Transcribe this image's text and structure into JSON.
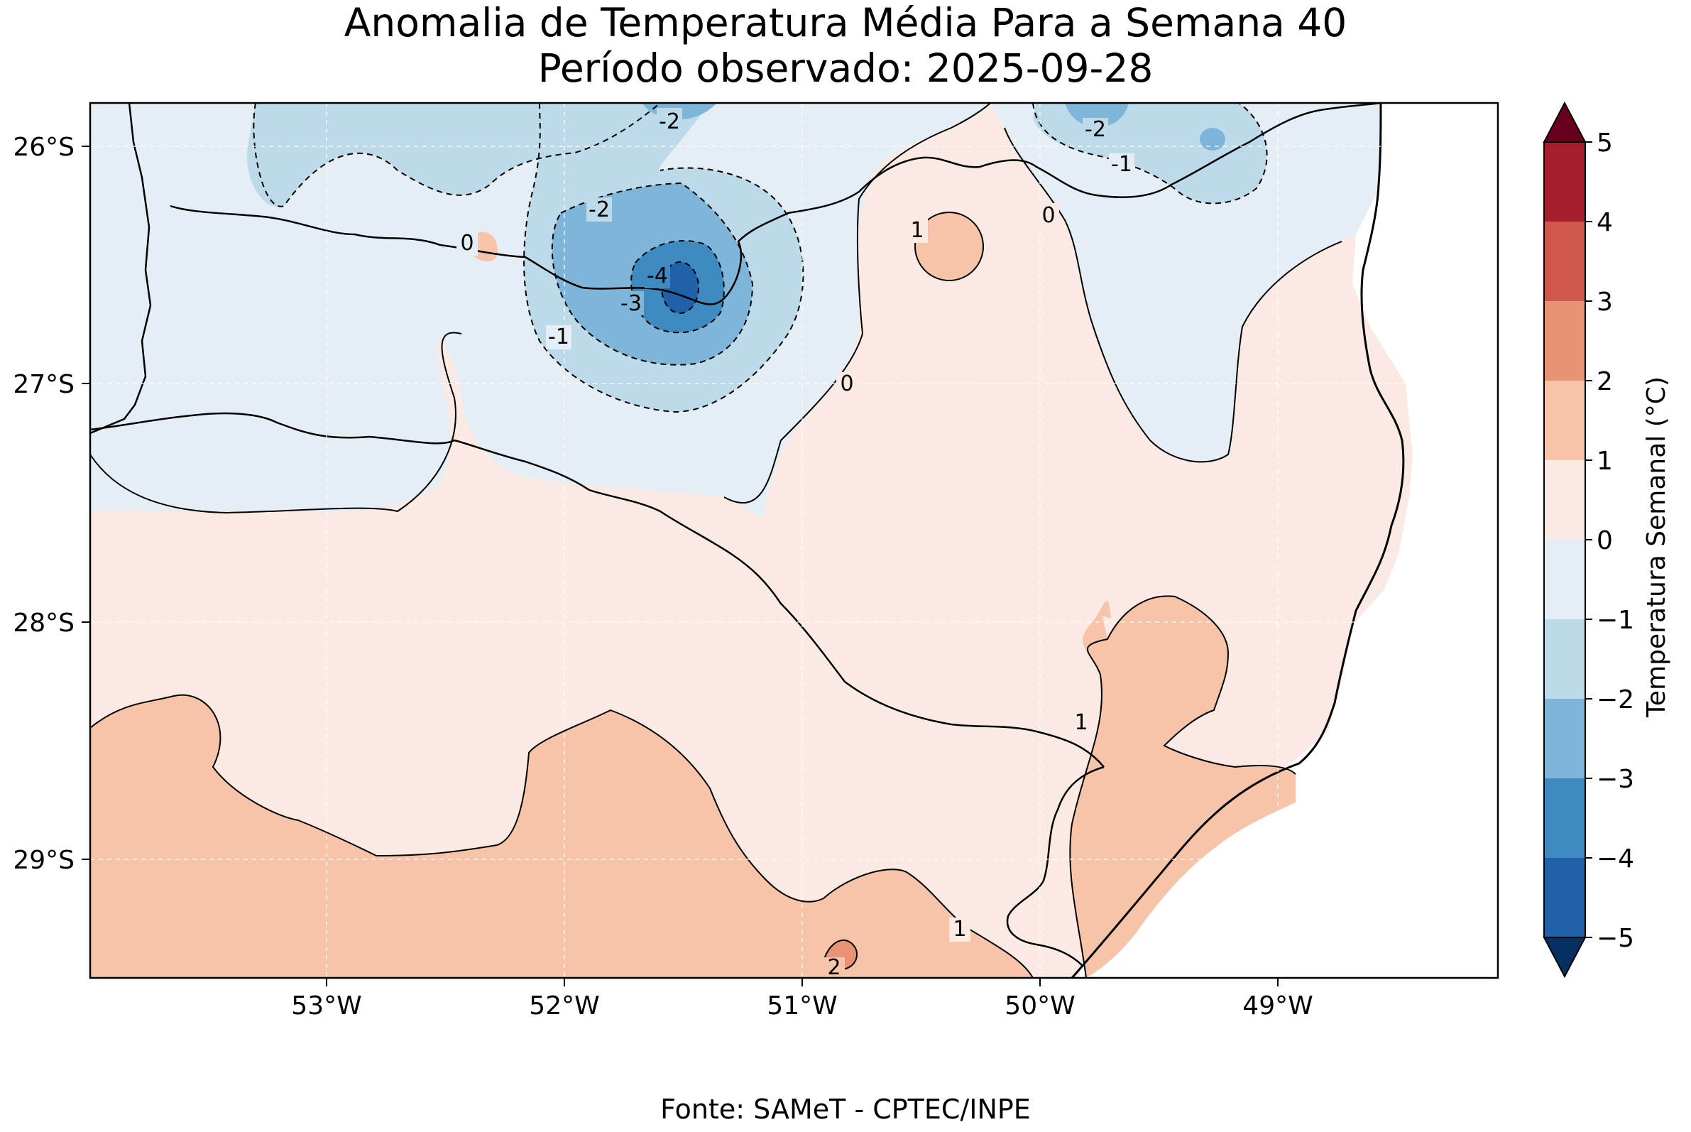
{
  "title": "Anomalia de Temperatura Média Para a Semana 40",
  "subtitle": "Período observado: 2025-09-28",
  "source": "Fonte: SAMeT - CPTEC/INPE",
  "map": {
    "latitude_ticks": [
      "26°S",
      "27°S",
      "28°S",
      "29°S"
    ],
    "longitude_ticks": [
      "53°W",
      "52°W",
      "51°W",
      "50°W",
      "49°W"
    ],
    "contour_labels": [
      "-2",
      "-2",
      "-1",
      "-2",
      "0",
      "1",
      "0",
      "-4",
      "-3",
      "-1",
      "0",
      "1",
      "1",
      "2"
    ]
  },
  "colorbar": {
    "label": "Temperatura Semanal (°C)",
    "ticks": [
      "5",
      "4",
      "3",
      "2",
      "1",
      "0",
      "−1",
      "−2",
      "−3",
      "−4",
      "−5"
    ],
    "colors": [
      "#67001f",
      "#a51e2d",
      "#d0574c",
      "#ea9274",
      "#f8c4a9",
      "#faeae3",
      "#e5eef4",
      "#bcdae9",
      "#7fb5d8",
      "#3f8ac1",
      "#1f62a9",
      "#053061"
    ]
  }
}
